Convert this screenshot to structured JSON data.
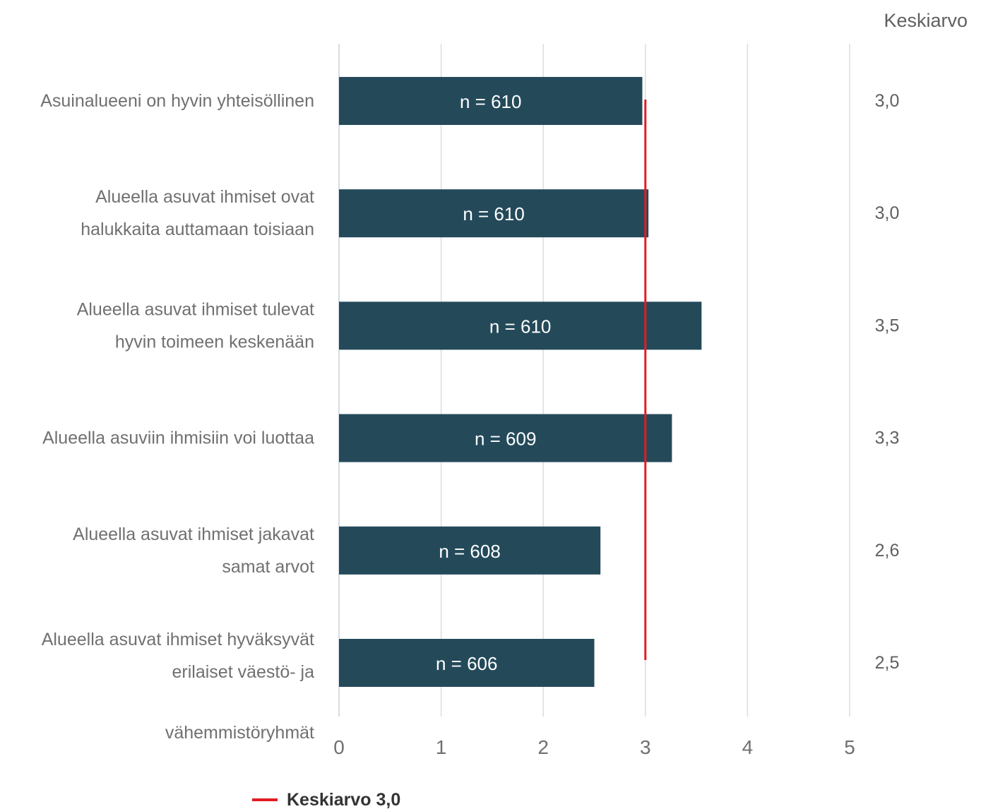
{
  "chart_data": {
    "type": "bar",
    "orientation": "horizontal",
    "categories": [
      [
        "Asuinalueeni on hyvin yhteisöllinen"
      ],
      [
        "Alueella asuvat ihmiset ovat",
        "halukkaita auttamaan toisiaan"
      ],
      [
        "Alueella asuvat ihmiset tulevat",
        "hyvin toimeen keskenään"
      ],
      [
        "Alueella asuviin ihmisiin voi luottaa"
      ],
      [
        "Alueella asuvat ihmiset jakavat",
        "samat arvot"
      ],
      [
        "Alueella asuvat ihmiset hyväksyvät",
        "erilaiset väestö- ja",
        "vähemmistöryhmät"
      ]
    ],
    "values": [
      2.97,
      3.03,
      3.55,
      3.26,
      2.56,
      2.5
    ],
    "bar_labels": [
      "n = 610",
      "n = 610",
      "n = 610",
      "n = 609",
      "n = 608",
      "n = 606"
    ],
    "mean_header": "Keskiarvo",
    "mean_labels": [
      "3,0",
      "3,0",
      "3,5",
      "3,3",
      "2,6",
      "2,5"
    ],
    "reference_line": {
      "value": 3.0,
      "label": "Keskiarvo 3,0",
      "color": "#e31b23"
    },
    "xlim": [
      0,
      5
    ],
    "xticks": [
      0,
      1,
      2,
      3,
      4,
      5
    ],
    "grid": "vertical",
    "legend_position": "bottom-left",
    "colors": {
      "bar": "#244a5a",
      "grid": "#dddddd",
      "axis": "#c8d2da",
      "reference": "#e31b23"
    }
  }
}
